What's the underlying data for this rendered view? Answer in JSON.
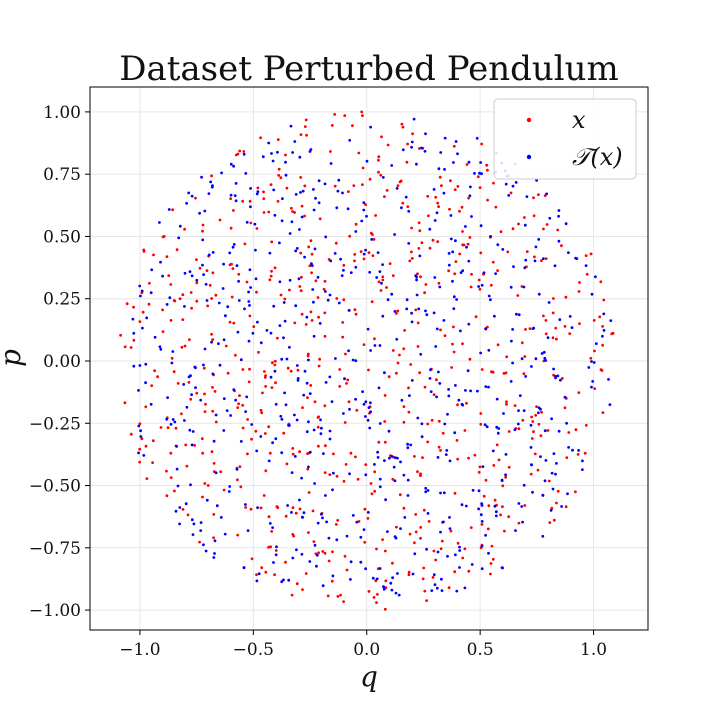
{
  "chart_data": {
    "type": "scatter",
    "title": "Dataset Perturbed Pendulum",
    "xlabel": "q",
    "ylabel": "p",
    "xlim": [
      -1.22,
      1.24
    ],
    "ylim": [
      -1.08,
      1.1
    ],
    "xticks": [
      -1.0,
      -0.5,
      0.0,
      0.5,
      1.0
    ],
    "xtick_labels": [
      "−1.0",
      "−0.5",
      "0.0",
      "0.5",
      "1.0"
    ],
    "yticks": [
      -1.0,
      -0.75,
      -0.5,
      -0.25,
      0.0,
      0.25,
      0.5,
      0.75,
      1.0
    ],
    "ytick_labels": [
      "−1.00",
      "−0.75",
      "−0.50",
      "−0.25",
      "0.00",
      "0.25",
      "0.50",
      "0.75",
      "1.00"
    ],
    "grid": true,
    "legend": {
      "placement": "top-right"
    },
    "series": [
      {
        "name": "x",
        "color": "#ff0000",
        "points": []
      },
      {
        "name": "𝒯(x)",
        "color": "#0000ff",
        "points": []
      }
    ],
    "generation": {
      "count_per_series": 700,
      "radius_q": 1.1,
      "radius_p": 1.0,
      "seed_x": 7,
      "seed_tx": 19
    }
  }
}
